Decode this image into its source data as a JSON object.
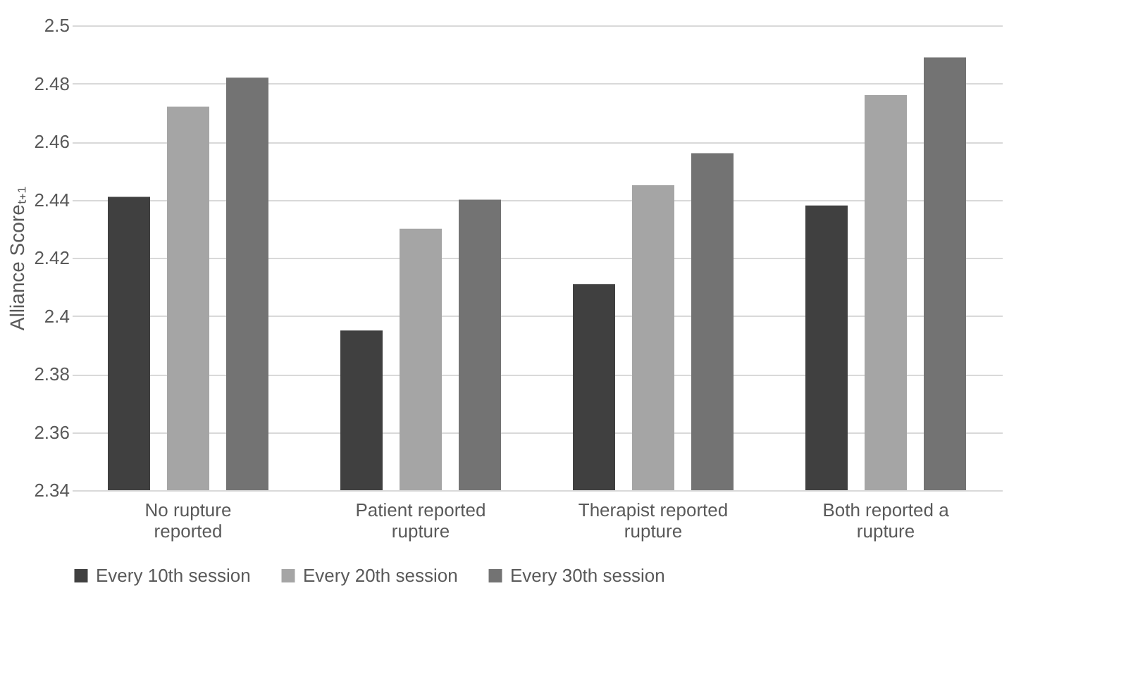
{
  "chart_data": {
    "type": "bar",
    "ylabel": "Alliance Scoreₜ₊₁",
    "categories": [
      "No rupture reported",
      "Patient reported rupture",
      "Therapist reported rupture",
      "Both reported a rupture"
    ],
    "series": [
      {
        "name": "Every 10th session",
        "color": "#404040",
        "values": [
          2.441,
          2.395,
          2.411,
          2.438
        ]
      },
      {
        "name": "Every 20th session",
        "color": "#a5a5a5",
        "values": [
          2.472,
          2.43,
          2.445,
          2.476
        ]
      },
      {
        "name": "Every 30th session",
        "color": "#737373",
        "values": [
          2.482,
          2.44,
          2.456,
          2.489
        ]
      }
    ],
    "ylim": [
      2.34,
      2.5
    ],
    "yticks": [
      2.34,
      2.36,
      2.38,
      2.4,
      2.42,
      2.44,
      2.46,
      2.48,
      2.5
    ],
    "grid": "y",
    "legend": "bottom"
  }
}
